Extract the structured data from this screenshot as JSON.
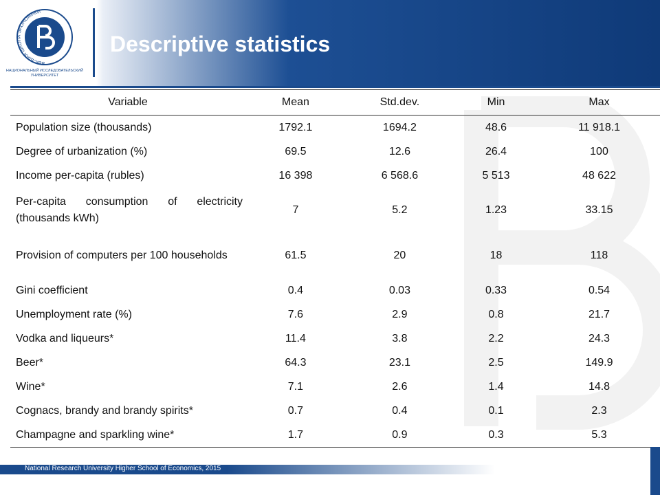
{
  "header": {
    "title": "Descriptive statistics",
    "logo_ring": "ВЫСШАЯ ШКОЛА ЭКОНОМИКИ",
    "logo_caption": [
      "НАЦИОНАЛЬНЫЙ ИССЛЕДОВАТЕЛЬСКИЙ",
      "УНИВЕРСИТЕТ"
    ]
  },
  "table": {
    "columns": [
      "Variable",
      "Mean",
      "Std.dev.",
      "Min",
      "Max"
    ],
    "rows": [
      [
        "Population size (thousands)",
        "1792.1",
        "1694.2",
        "48.6",
        "11 918.1"
      ],
      [
        "Degree of urbanization (%)",
        "69.5",
        "12.6",
        "26.4",
        "100"
      ],
      [
        "Income per-capita (rubles)",
        "16 398",
        "6 568.6",
        "5 513",
        "48 622"
      ],
      [
        "Per-capita consumption of electricity (thousands kWh)",
        "7",
        "5.2",
        "1.23",
        "33.15"
      ],
      [
        "Provision of computers per 100 households",
        "61.5",
        "20",
        "18",
        "118"
      ],
      [
        "Gini coefficient",
        "0.4",
        "0.03",
        "0.33",
        "0.54"
      ],
      [
        "Unemployment rate (%)",
        "7.6",
        "2.9",
        "0.8",
        "21.7"
      ],
      [
        "Vodka and liqueurs*",
        "11.4",
        "3.8",
        "2.2",
        "24.3"
      ],
      [
        "Beer*",
        "64.3",
        "23.1",
        "2.5",
        "149.9"
      ],
      [
        "Wine*",
        "7.1",
        "2.6",
        "1.4",
        "14.8"
      ],
      [
        "Cognacs, brandy and brandy spirits*",
        "0.7",
        "0.4",
        "0.1",
        "2.3"
      ],
      [
        "Champagne and sparkling wine*",
        "1.7",
        "0.9",
        "0.3",
        "5.3"
      ]
    ]
  },
  "footer": {
    "text": "National Research University Higher School of Economics, 2015"
  }
}
